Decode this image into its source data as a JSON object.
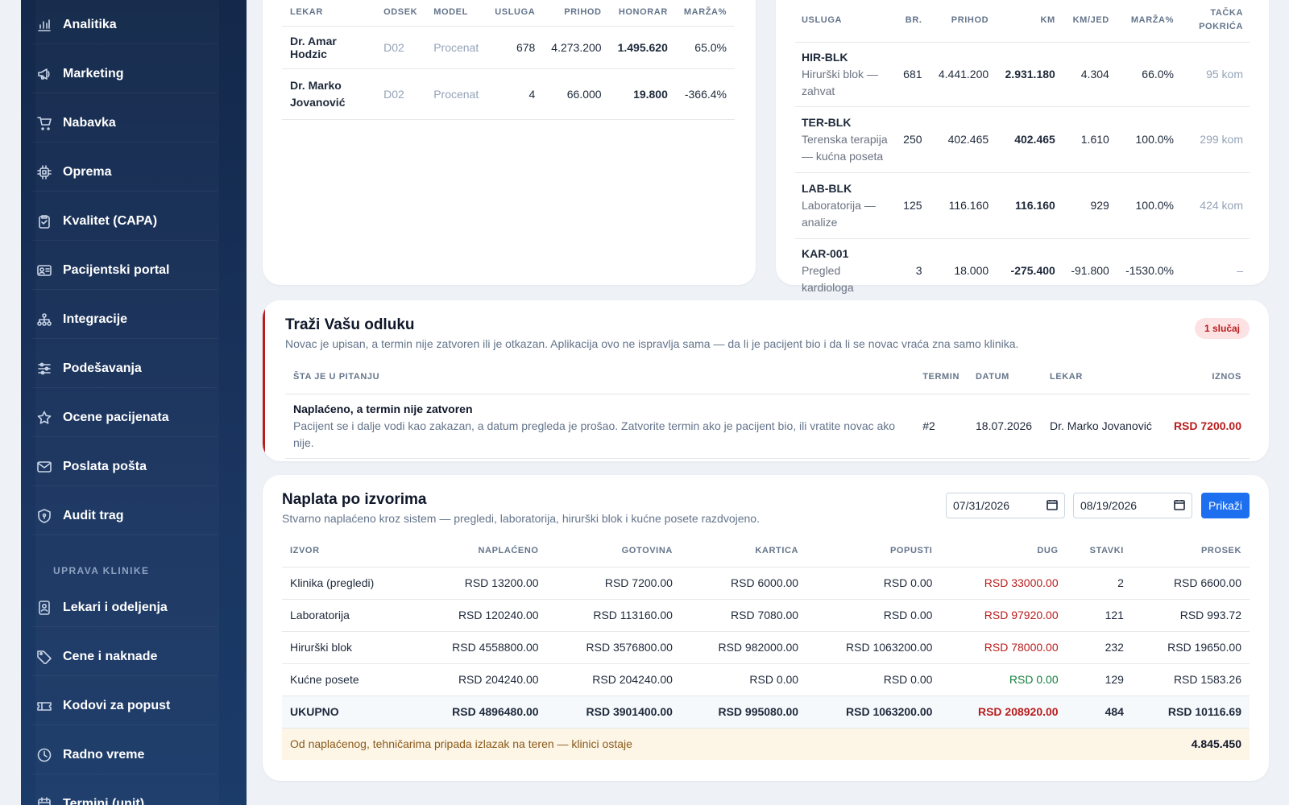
{
  "sidebar": {
    "items": [
      {
        "label": "Analitika",
        "icon": "bar-chart-icon"
      },
      {
        "label": "Marketing",
        "icon": "megaphone-icon"
      },
      {
        "label": "Nabavka",
        "icon": "cart-icon"
      },
      {
        "label": "Oprema",
        "icon": "chip-icon"
      },
      {
        "label": "Kvalitet (CAPA)",
        "icon": "clipboard-icon"
      },
      {
        "label": "Pacijentski portal",
        "icon": "id-card-icon"
      },
      {
        "label": "Integracije",
        "icon": "network-icon"
      },
      {
        "label": "Podešavanja",
        "icon": "sliders-icon"
      },
      {
        "label": "Ocene pacijenata",
        "icon": "star-icon"
      },
      {
        "label": "Poslata pošta",
        "icon": "mail-icon"
      },
      {
        "label": "Audit trag",
        "icon": "shield-icon"
      }
    ],
    "section_label": "UPRAVA KLINIKE",
    "section_items": [
      {
        "label": "Lekari i odeljenja",
        "icon": "badge-icon"
      },
      {
        "label": "Cene i naknade",
        "icon": "tag-icon"
      },
      {
        "label": "Kodovi za popust",
        "icon": "ticket-icon"
      },
      {
        "label": "Radno vreme",
        "icon": "clock-icon"
      },
      {
        "label": "Termini (unit)",
        "icon": "calendar-icon"
      }
    ]
  },
  "doctors": {
    "headers": [
      "LEKAR",
      "ODSEK",
      "MODEL",
      "USLUGA",
      "PRIHOD",
      "HONORAR",
      "MARŽA%"
    ],
    "rows": [
      {
        "lekar": "Dr. Amar Hodzic",
        "odsek": "D02",
        "model": "Procenat",
        "usluga": "678",
        "prihod": "4.273.200",
        "honorar": "1.495.620",
        "marza": "65.0%"
      },
      {
        "lekar": "Dr. Marko Jovanović",
        "odsek": "D02",
        "model": "Procenat",
        "usluga": "4",
        "prihod": "66.000",
        "honorar": "19.800",
        "marza": "-366.4%"
      }
    ]
  },
  "services": {
    "headers": [
      "USLUGA",
      "BR.",
      "PRIHOD",
      "KM",
      "KM/JED",
      "MARŽA%",
      "TAČKA POKRIĆA"
    ],
    "rows": [
      {
        "code": "HIR-BLK",
        "name": "Hirurški blok — zahvat",
        "br": "681",
        "prihod": "4.441.200",
        "km": "2.931.180",
        "km_jed": "4.304",
        "marza": "66.0%",
        "tacka": "95 kom"
      },
      {
        "code": "TER-BLK",
        "name": "Terenska terapija — kućna poseta",
        "br": "250",
        "prihod": "402.465",
        "km": "402.465",
        "km_jed": "1.610",
        "marza": "100.0%",
        "tacka": "299 kom"
      },
      {
        "code": "LAB-BLK",
        "name": "Laboratorija — analize",
        "br": "125",
        "prihod": "116.160",
        "km": "116.160",
        "km_jed": "929",
        "marza": "100.0%",
        "tacka": "424 kom"
      },
      {
        "code": "KAR-001",
        "name": "Pregled kardiologa",
        "br": "3",
        "prihod": "18.000",
        "km": "-275.400",
        "km_jed": "-91.800",
        "marza": "-1530.0%",
        "tacka": "–"
      }
    ]
  },
  "decision": {
    "title": "Traži Vašu odluku",
    "subtitle": "Novac je upisan, a termin nije zatvoren ili je otkazan. Aplikacija ovo ne ispravlja sama — da li je pacijent bio i da li se novac vraća zna samo klinika.",
    "badge": "1 slučaj",
    "headers": [
      "ŠTA JE U PITANJU",
      "TERMIN",
      "DATUM",
      "LEKAR",
      "IZNOS"
    ],
    "rows": [
      {
        "title": "Naplaćeno, a termin nije zatvoren",
        "desc": "Pacijent se i dalje vodi kao zakazan, a datum pregleda je prošao. Zatvorite termin ako je pacijent bio, ili vratite novac ako nije.",
        "termin": "#2",
        "datum": "18.07.2026",
        "lekar": "Dr. Marko Jovanović",
        "iznos": "RSD 7200.00"
      }
    ]
  },
  "payments": {
    "title": "Naplata po izvorima",
    "subtitle": "Stvarno naplaćeno kroz sistem — pregledi, laboratorija, hirurški blok i kućne posete razdvojeno.",
    "date_from": "07/31/2026",
    "date_to": "08/19/2026",
    "show_button": "Prikaži",
    "headers": [
      "IZVOR",
      "NAPLAĆENO",
      "GOTOVINA",
      "KARTICA",
      "POPUSTI",
      "DUG",
      "STAVKI",
      "PROSEK"
    ],
    "rows": [
      {
        "izvor": "Klinika (pregledi)",
        "naplaceno": "RSD 13200.00",
        "gotovina": "RSD 7200.00",
        "kartica": "RSD 6000.00",
        "popusti": "RSD 0.00",
        "dug": "RSD 33000.00",
        "stavki": "2",
        "prosek": "RSD 6600.00"
      },
      {
        "izvor": "Laboratorija",
        "naplaceno": "RSD 120240.00",
        "gotovina": "RSD 113160.00",
        "kartica": "RSD 7080.00",
        "popusti": "RSD 0.00",
        "dug": "RSD 97920.00",
        "stavki": "121",
        "prosek": "RSD 993.72"
      },
      {
        "izvor": "Hirurški blok",
        "naplaceno": "RSD 4558800.00",
        "gotovina": "RSD 3576800.00",
        "kartica": "RSD 982000.00",
        "popusti": "RSD 1063200.00",
        "dug": "RSD 78000.00",
        "stavki": "232",
        "prosek": "RSD 19650.00"
      },
      {
        "izvor": "Kućne posete",
        "naplaceno": "RSD 204240.00",
        "gotovina": "RSD 204240.00",
        "kartica": "RSD 0.00",
        "popusti": "RSD 0.00",
        "dug": "RSD 0.00",
        "stavki": "129",
        "prosek": "RSD 1583.26"
      }
    ],
    "total": {
      "izvor": "UKUPNO",
      "naplaceno": "RSD 4896480.00",
      "gotovina": "RSD 3901400.00",
      "kartica": "RSD 995080.00",
      "popusti": "RSD 1063200.00",
      "dug": "RSD 208920.00",
      "stavki": "484",
      "prosek": "RSD 10116.69"
    },
    "note": {
      "text": "Od naplaćenog, tehničarima pripada izlazak na teren — klinici ostaje",
      "value": "4.845.450"
    }
  },
  "colors": {
    "accent": "#1d6ff0",
    "danger": "#b91c1c",
    "success": "#15803d",
    "sidebar": "#1a3560"
  }
}
